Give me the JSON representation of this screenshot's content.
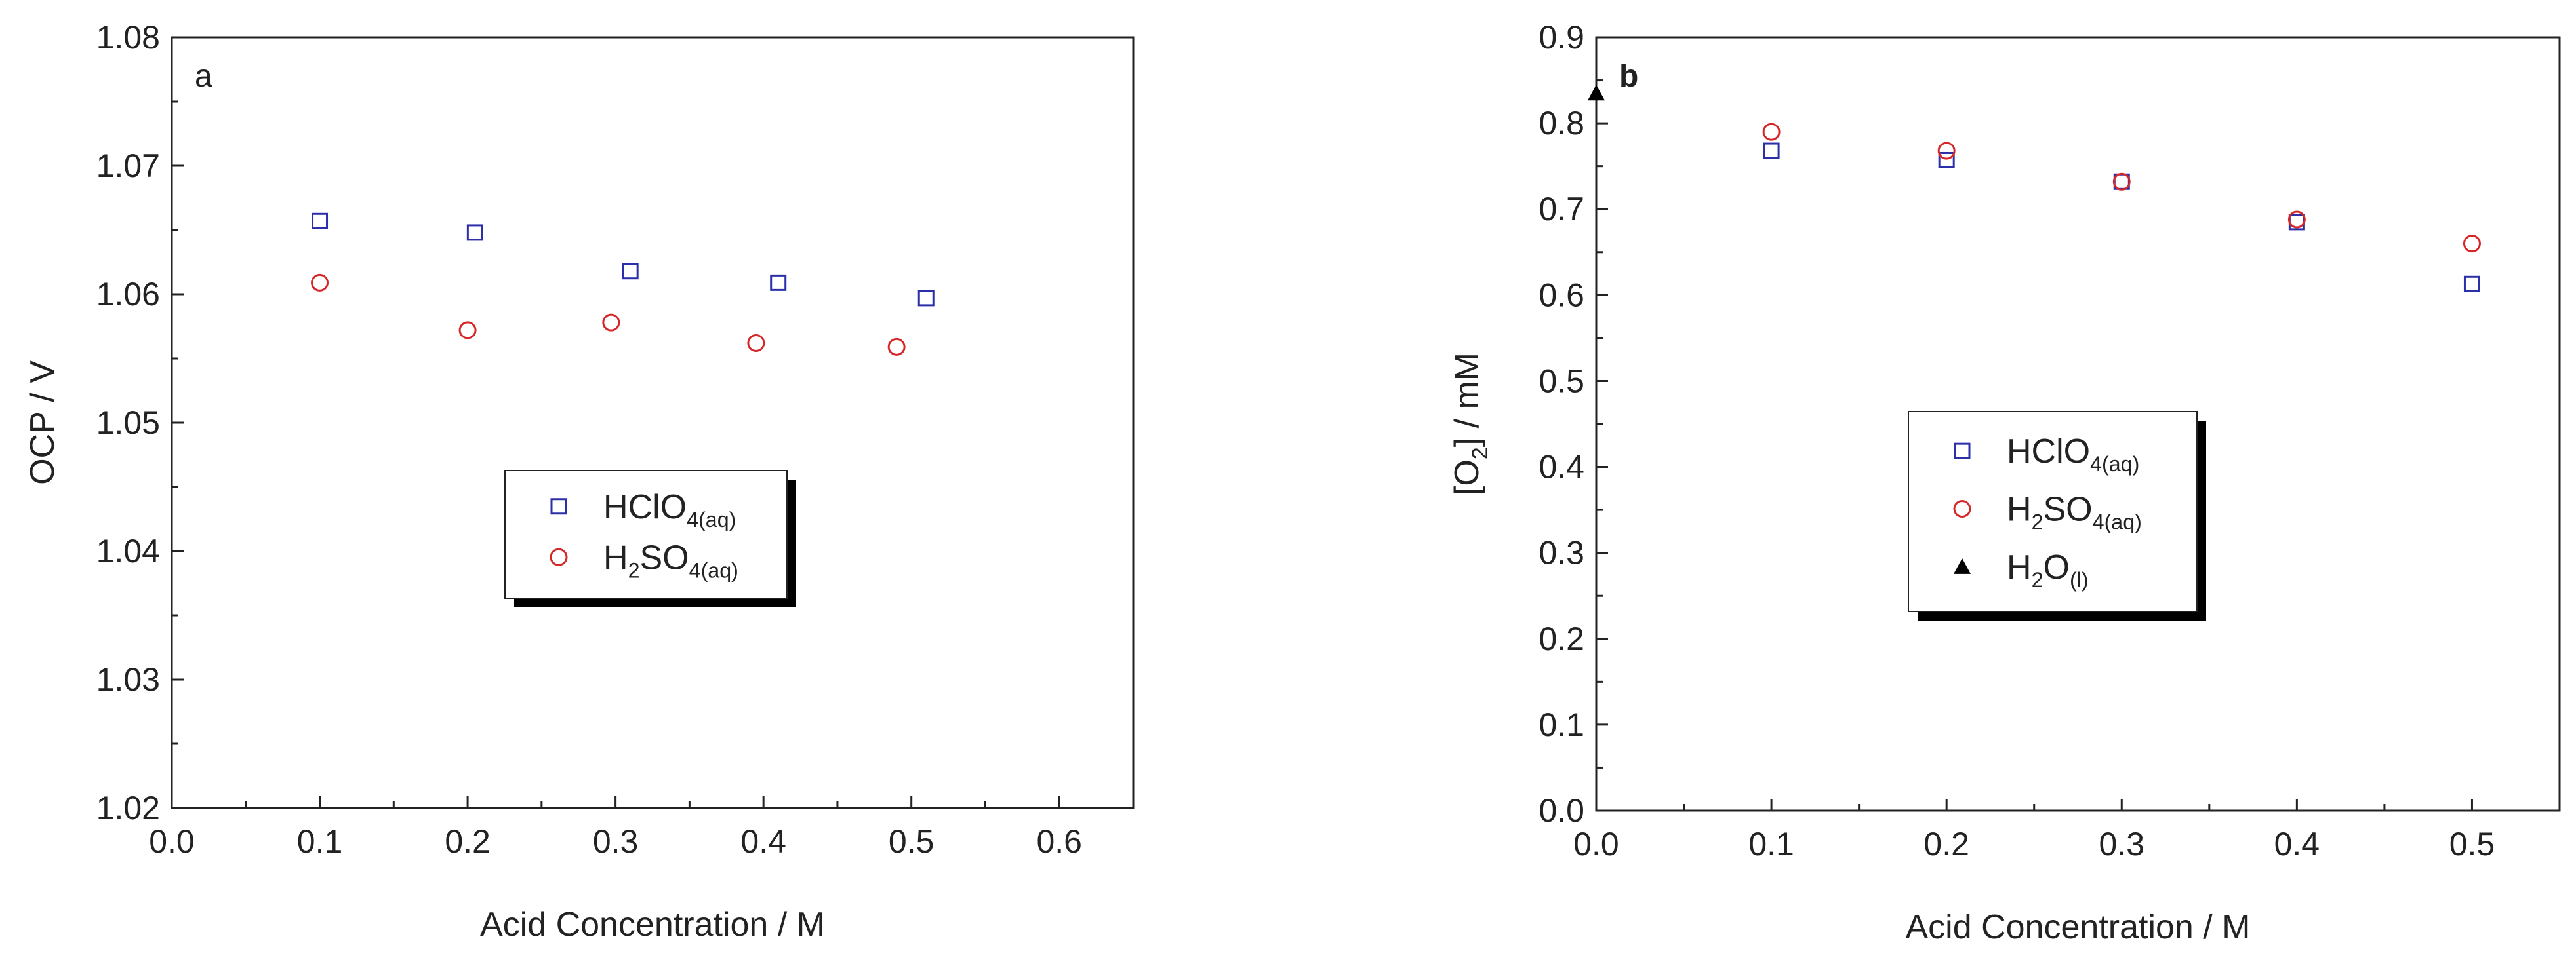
{
  "chart_data": [
    {
      "type": "scatter",
      "panel_label": "a",
      "xlabel": "Acid Concentration / M",
      "ylabel": "OCP / V",
      "xlim": [
        0.0,
        0.65
      ],
      "ylim": [
        1.02,
        1.08
      ],
      "xticks": [
        "0.0",
        "0.1",
        "0.2",
        "0.3",
        "0.4",
        "0.5",
        "0.6"
      ],
      "yticks": [
        "1.02",
        "1.03",
        "1.04",
        "1.05",
        "1.06",
        "1.07",
        "1.08"
      ],
      "grid": false,
      "legend_position": "center",
      "series": [
        {
          "name": "HClO",
          "sub": "4(aq)",
          "marker": "square",
          "color": "#2b2fa8",
          "x": [
            0.1,
            0.205,
            0.31,
            0.41,
            0.51
          ],
          "y": [
            1.0657,
            1.0648,
            1.0618,
            1.0609,
            1.0597
          ]
        },
        {
          "name": "H",
          "sub1": "2",
          "name2": "SO",
          "sub": "4(aq)",
          "marker": "circle",
          "color": "#d62728",
          "x": [
            0.1,
            0.2,
            0.297,
            0.395,
            0.49
          ],
          "y": [
            1.0609,
            1.0572,
            1.0578,
            1.0562,
            1.0559
          ]
        }
      ]
    },
    {
      "type": "scatter",
      "panel_label": "b",
      "xlabel": "Acid Concentration / M",
      "ylabel_main": "[O",
      "ylabel_sub": "2",
      "ylabel_end": "] / mM",
      "xlim": [
        0.0,
        0.55
      ],
      "ylim": [
        0.0,
        0.9
      ],
      "xticks": [
        "0.0",
        "0.1",
        "0.2",
        "0.3",
        "0.4",
        "0.5"
      ],
      "yticks": [
        "0.0",
        "0.1",
        "0.2",
        "0.3",
        "0.4",
        "0.5",
        "0.6",
        "0.7",
        "0.8",
        "0.9"
      ],
      "grid": false,
      "legend_position": "center",
      "series": [
        {
          "name": "HClO",
          "sub": "4(aq)",
          "marker": "square",
          "color": "#2b2fa8",
          "x": [
            0.1,
            0.2,
            0.3,
            0.4,
            0.5
          ],
          "y": [
            0.768,
            0.757,
            0.732,
            0.685,
            0.613
          ]
        },
        {
          "name": "H",
          "sub1": "2",
          "name2": "SO",
          "sub": "4(aq)",
          "marker": "circle",
          "color": "#d62728",
          "x": [
            0.1,
            0.2,
            0.3,
            0.4,
            0.5
          ],
          "y": [
            0.79,
            0.768,
            0.732,
            0.688,
            0.66
          ]
        },
        {
          "name": "H",
          "sub1": "2",
          "name2": "O",
          "sub": "(l)",
          "marker": "triangle",
          "color": "#000000",
          "x": [
            0.0
          ],
          "y": [
            0.835
          ]
        }
      ]
    }
  ]
}
